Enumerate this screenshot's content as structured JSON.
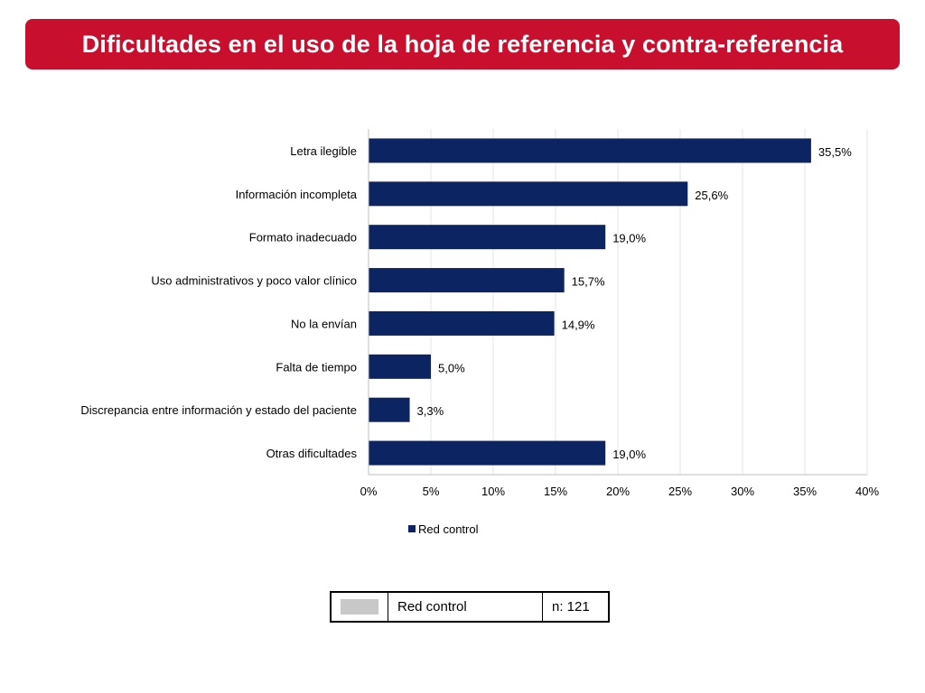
{
  "header": {
    "title": "Dificultades en el uso de la hoja de referencia y contra-referencia"
  },
  "colors": {
    "title_bg": "#c8102e",
    "bar": "#0c2461",
    "swatch": "#c8c8c8"
  },
  "chart_data": {
    "type": "bar",
    "orientation": "horizontal",
    "categories": [
      "Letra ilegible",
      "Información incompleta",
      "Formato inadecuado",
      "Uso administrativos y poco valor clínico",
      "No la envían",
      "Falta de tiempo",
      "Discrepancia entre información y estado del paciente",
      "Otras dificultades"
    ],
    "series": [
      {
        "name": "Red control",
        "values": [
          35.5,
          25.6,
          19.0,
          15.7,
          14.9,
          5.0,
          3.3,
          19.0
        ]
      }
    ],
    "data_labels": [
      "35,5%",
      "25,6%",
      "19,0%",
      "15,7%",
      "14,9%",
      "5,0%",
      "3,3%",
      "19,0%"
    ],
    "x_ticks": [
      0,
      5,
      10,
      15,
      20,
      25,
      30,
      35,
      40
    ],
    "x_tick_labels": [
      "0%",
      "5%",
      "10%",
      "15%",
      "20%",
      "25%",
      "30%",
      "35%",
      "40%"
    ],
    "xlim": [
      0,
      40
    ],
    "grid": true,
    "legend": "bottom",
    "xlabel": "",
    "ylabel": ""
  },
  "summary_legend": {
    "label": "Red control",
    "n": "n: 121"
  }
}
